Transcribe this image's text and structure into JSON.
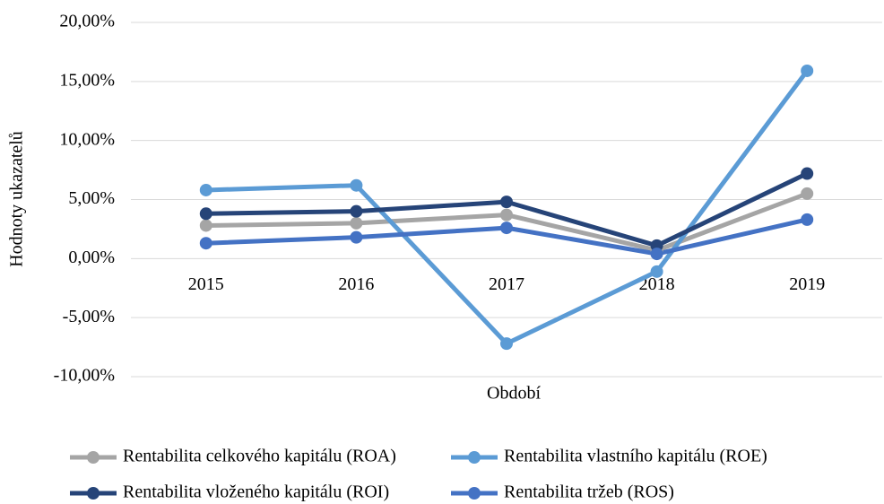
{
  "chart_data": {
    "type": "line",
    "x_label": "Období",
    "y_label": "Hodnoty ukazatelů",
    "categories": [
      "2015",
      "2016",
      "2017",
      "2018",
      "2019"
    ],
    "series": [
      {
        "name": "Rentabilita celkového kapitálu (ROA)",
        "color": "#a5a5a5",
        "values": [
          2.8,
          3.0,
          3.7,
          0.7,
          5.5
        ]
      },
      {
        "name": "Rentabilita vlastního kapitálu (ROE)",
        "color": "#5b9bd5",
        "values": [
          5.8,
          6.2,
          -7.2,
          -1.1,
          15.9
        ]
      },
      {
        "name": "Rentabilita vloženého kapitálu (ROI)",
        "color": "#264478",
        "values": [
          3.8,
          4.0,
          4.8,
          1.1,
          7.2
        ]
      },
      {
        "name": "Rentabilita tržeb (ROS)",
        "color": "#4472c4",
        "values": [
          1.3,
          1.8,
          2.6,
          0.4,
          3.3
        ]
      }
    ],
    "ylim": [
      -10,
      20
    ],
    "yticks": [
      {
        "value": -10,
        "label": "-10,00%"
      },
      {
        "value": -5,
        "label": "-5,00%"
      },
      {
        "value": 0,
        "label": "0,00%"
      },
      {
        "value": 5,
        "label": "5,00%"
      },
      {
        "value": 10,
        "label": "10,00%"
      },
      {
        "value": 15,
        "label": "15,00%"
      },
      {
        "value": 20,
        "label": "20,00%"
      }
    ],
    "grid": true
  }
}
